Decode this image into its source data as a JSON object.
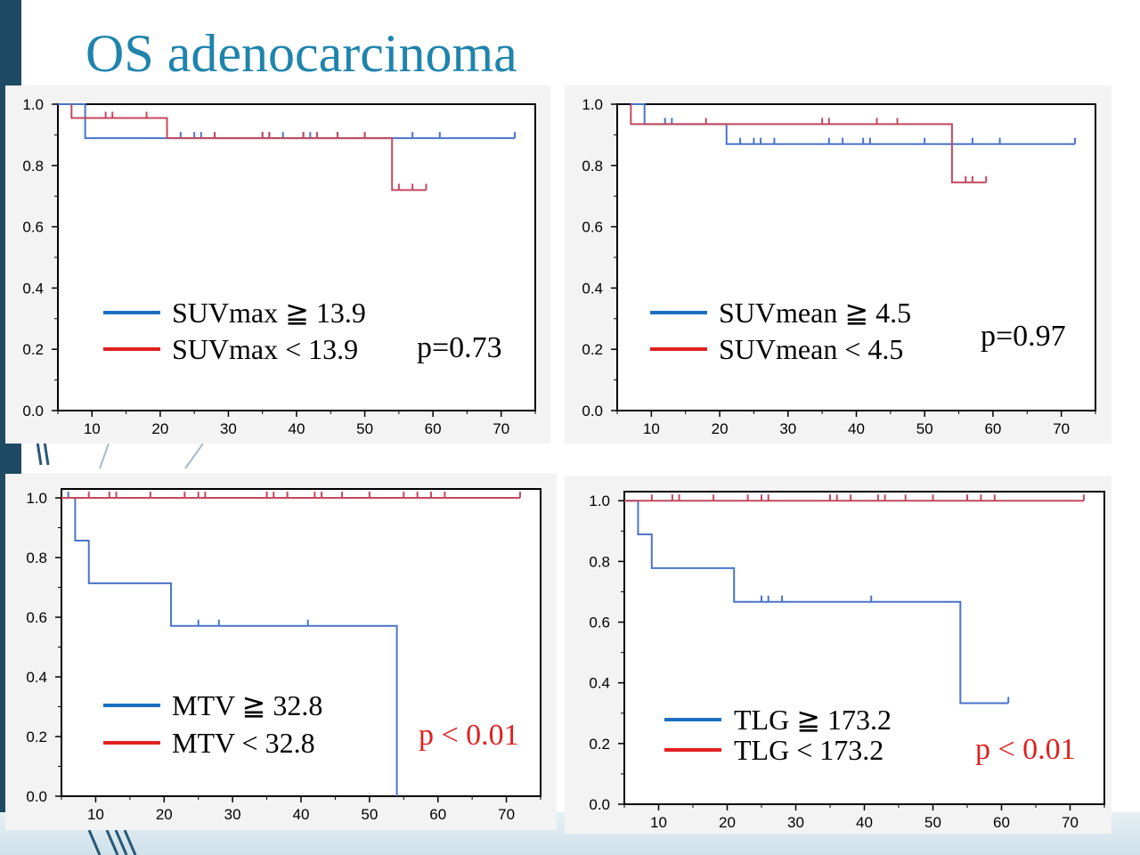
{
  "slide_title": "OS adenocarcinoma",
  "colors": {
    "high": "#4a74c9",
    "low": "#c4485e",
    "legend_blue": "#1b6fc0",
    "legend_red": "#e0201f",
    "title": "#1f84ac"
  },
  "chart_data": [
    {
      "type": "line",
      "subtype": "kaplan-meier",
      "xlim": [
        5,
        75
      ],
      "ylim": [
        0,
        1
      ],
      "xticks": [
        10,
        20,
        30,
        40,
        50,
        60,
        70
      ],
      "yticks": [
        "0.0",
        "0.2",
        "0.4",
        "0.6",
        "0.8",
        "1.0"
      ],
      "pvalue": "p=0.73",
      "pvalue_color": "#000000",
      "series": [
        {
          "name": "SUVmax ≧ 13.9",
          "color": "#4a74c9",
          "steps": [
            [
              5,
              1.0
            ],
            [
              9,
              0.889
            ],
            [
              72,
              0.889
            ]
          ],
          "censors": [
            [
              23,
              0.889
            ],
            [
              25,
              0.889
            ],
            [
              26,
              0.889
            ],
            [
              28,
              0.889
            ],
            [
              35,
              0.889
            ],
            [
              36,
              0.889
            ],
            [
              38,
              0.889
            ],
            [
              41,
              0.889
            ],
            [
              42,
              0.889
            ],
            [
              46,
              0.889
            ],
            [
              50,
              0.889
            ],
            [
              57,
              0.889
            ],
            [
              61,
              0.889
            ],
            [
              72,
              0.889
            ]
          ]
        },
        {
          "name": "SUVmax < 13.9",
          "color": "#c4485e",
          "steps": [
            [
              7,
              1.0
            ],
            [
              7,
              0.955
            ],
            [
              21,
              0.955
            ],
            [
              21,
              0.889
            ],
            [
              54,
              0.889
            ],
            [
              54,
              0.72
            ],
            [
              59,
              0.72
            ]
          ],
          "censors": [
            [
              12,
              0.955
            ],
            [
              13,
              0.955
            ],
            [
              18,
              0.955
            ],
            [
              28,
              0.889
            ],
            [
              35,
              0.889
            ],
            [
              36,
              0.889
            ],
            [
              41,
              0.889
            ],
            [
              43,
              0.889
            ],
            [
              46,
              0.889
            ],
            [
              50,
              0.889
            ],
            [
              55,
              0.72
            ],
            [
              57,
              0.72
            ],
            [
              59,
              0.72
            ]
          ]
        }
      ]
    },
    {
      "type": "line",
      "subtype": "kaplan-meier",
      "xlim": [
        5,
        75
      ],
      "ylim": [
        0,
        1
      ],
      "xticks": [
        10,
        20,
        30,
        40,
        50,
        60,
        70
      ],
      "yticks": [
        "0.0",
        "0.2",
        "0.4",
        "0.6",
        "0.8",
        "1.0"
      ],
      "pvalue": "p=0.97",
      "pvalue_color": "#000000",
      "series": [
        {
          "name": "SUVmean ≧ 4.5",
          "color": "#4a74c9",
          "steps": [
            [
              7,
              1.0
            ],
            [
              9,
              1.0
            ],
            [
              9,
              0.935
            ],
            [
              21,
              0.935
            ],
            [
              21,
              0.87
            ],
            [
              72,
              0.87
            ]
          ],
          "censors": [
            [
              12,
              0.935
            ],
            [
              13,
              0.935
            ],
            [
              23,
              0.87
            ],
            [
              25,
              0.87
            ],
            [
              26,
              0.87
            ],
            [
              28,
              0.87
            ],
            [
              36,
              0.87
            ],
            [
              38,
              0.87
            ],
            [
              41,
              0.87
            ],
            [
              42,
              0.87
            ],
            [
              50,
              0.87
            ],
            [
              57,
              0.87
            ],
            [
              61,
              0.87
            ],
            [
              72,
              0.87
            ]
          ]
        },
        {
          "name": "SUVmean < 4.5",
          "color": "#c4485e",
          "steps": [
            [
              7,
              1.0
            ],
            [
              7,
              0.935
            ],
            [
              54,
              0.935
            ],
            [
              54,
              0.745
            ],
            [
              59,
              0.745
            ]
          ],
          "censors": [
            [
              18,
              0.935
            ],
            [
              35,
              0.935
            ],
            [
              36,
              0.935
            ],
            [
              43,
              0.935
            ],
            [
              46,
              0.935
            ],
            [
              56,
              0.745
            ],
            [
              57,
              0.745
            ],
            [
              59,
              0.745
            ]
          ]
        }
      ]
    },
    {
      "type": "line",
      "subtype": "kaplan-meier",
      "xlim": [
        5,
        75
      ],
      "ylim": [
        0,
        1.03
      ],
      "xticks": [
        10,
        20,
        30,
        40,
        50,
        60,
        70
      ],
      "yticks": [
        "0.0",
        "0.2",
        "0.4",
        "0.6",
        "0.8",
        "1.0"
      ],
      "pvalue": "p < 0.01",
      "pvalue_color": "#e0201f",
      "series": [
        {
          "name": "MTV ≧ 32.8",
          "color": "#4a74c9",
          "steps": [
            [
              5,
              1.0
            ],
            [
              7,
              1.0
            ],
            [
              7,
              0.857
            ],
            [
              9,
              0.857
            ],
            [
              9,
              0.714
            ],
            [
              21,
              0.714
            ],
            [
              21,
              0.571
            ],
            [
              54,
              0.571
            ],
            [
              54,
              0.0
            ]
          ],
          "censors": [
            [
              6,
              1.0
            ],
            [
              25,
              0.571
            ],
            [
              28,
              0.571
            ],
            [
              41,
              0.571
            ]
          ]
        },
        {
          "name": "MTV < 32.8",
          "color": "#c4485e",
          "steps": [
            [
              5,
              1.0
            ],
            [
              72,
              1.0
            ]
          ],
          "censors": [
            [
              9,
              1.0
            ],
            [
              12,
              1.0
            ],
            [
              13,
              1.0
            ],
            [
              18,
              1.0
            ],
            [
              23,
              1.0
            ],
            [
              25,
              1.0
            ],
            [
              26,
              1.0
            ],
            [
              35,
              1.0
            ],
            [
              36,
              1.0
            ],
            [
              38,
              1.0
            ],
            [
              42,
              1.0
            ],
            [
              43,
              1.0
            ],
            [
              46,
              1.0
            ],
            [
              50,
              1.0
            ],
            [
              55,
              1.0
            ],
            [
              57,
              1.0
            ],
            [
              59,
              1.0
            ],
            [
              61,
              1.0
            ],
            [
              72,
              1.0
            ]
          ]
        }
      ]
    },
    {
      "type": "line",
      "subtype": "kaplan-meier",
      "xlim": [
        5,
        75
      ],
      "ylim": [
        0,
        1.03
      ],
      "xticks": [
        10,
        20,
        30,
        40,
        50,
        60,
        70
      ],
      "yticks": [
        "0.0",
        "0.2",
        "0.4",
        "0.6",
        "0.8",
        "1.0"
      ],
      "pvalue": "p < 0.01",
      "pvalue_color": "#e0201f",
      "series": [
        {
          "name": "TLG ≧ 173.2",
          "color": "#4a74c9",
          "steps": [
            [
              5,
              1.0
            ],
            [
              7,
              1.0
            ],
            [
              7,
              0.889
            ],
            [
              9,
              0.889
            ],
            [
              9,
              0.778
            ],
            [
              21,
              0.778
            ],
            [
              21,
              0.667
            ],
            [
              54,
              0.667
            ],
            [
              54,
              0.333
            ],
            [
              61,
              0.333
            ]
          ],
          "censors": [
            [
              25,
              0.667
            ],
            [
              26,
              0.667
            ],
            [
              28,
              0.667
            ],
            [
              41,
              0.667
            ],
            [
              61,
              0.333
            ]
          ]
        },
        {
          "name": "TLG < 173.2",
          "color": "#c4485e",
          "steps": [
            [
              5,
              1.0
            ],
            [
              72,
              1.0
            ]
          ],
          "censors": [
            [
              9,
              1.0
            ],
            [
              12,
              1.0
            ],
            [
              13,
              1.0
            ],
            [
              18,
              1.0
            ],
            [
              23,
              1.0
            ],
            [
              25,
              1.0
            ],
            [
              26,
              1.0
            ],
            [
              35,
              1.0
            ],
            [
              36,
              1.0
            ],
            [
              38,
              1.0
            ],
            [
              42,
              1.0
            ],
            [
              43,
              1.0
            ],
            [
              46,
              1.0
            ],
            [
              50,
              1.0
            ],
            [
              55,
              1.0
            ],
            [
              57,
              1.0
            ],
            [
              59,
              1.0
            ],
            [
              72,
              1.0
            ]
          ]
        }
      ]
    }
  ]
}
